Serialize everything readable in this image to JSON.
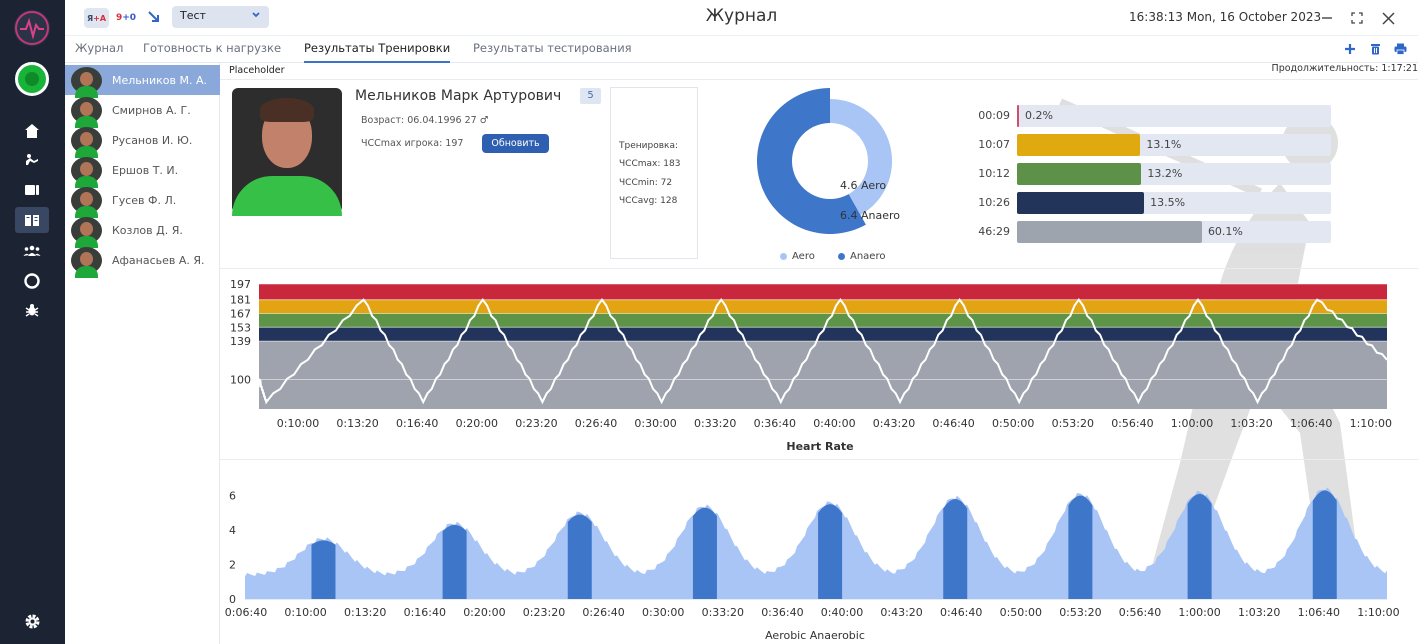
{
  "topbar": {
    "badge_ya": "Я",
    "badge_ya_suffix": "+A",
    "score_home": "9",
    "score_suffix": "+0",
    "team_select": "Тест",
    "title": "Журнал",
    "clock": "16:38:13  Mon, 16 October 2023"
  },
  "tabs": [
    "Журнал",
    "Готовность к нагрузке",
    "Результаты Тренировки",
    "Результаты тестирования"
  ],
  "active_tab": 2,
  "players": [
    "Мельников М. А.",
    "Смирнов А. Г.",
    "Русанов И. Ю.",
    "Ершов Т. И.",
    "Гусев Ф. Л.",
    "Козлов Д. Я.",
    "Афанасьев А. Я."
  ],
  "main": {
    "placeholder": "Placeholder",
    "duration": "Продолжительность: 1:17:21",
    "player_name": "Мельников Марк Артурович",
    "player_number": "5",
    "age": "Возраст: 06.04.1996 27",
    "hrmax_player": "ЧССmax игрока: 197",
    "update_button": "Обновить",
    "training_title": "Тренировка:",
    "hr_max": "ЧССmax: 183",
    "hr_min": "ЧССmin: 72",
    "hr_avg": "ЧССavg: 128"
  },
  "donut": {
    "label_aero": "4.6 Aero",
    "label_anaero": "6.4 Anaero",
    "legend": [
      "Aero",
      "Anaero"
    ],
    "values": {
      "aero": 4.6,
      "anaero": 6.4
    },
    "colors": {
      "aero": "#a9c5f5",
      "anaero": "#3e76c9"
    }
  },
  "zones": [
    {
      "time": "00:09",
      "pct": "0.2%",
      "value": 0.2,
      "color": "#d24a6d"
    },
    {
      "time": "10:07",
      "pct": "13.1%",
      "value": 13.1,
      "color": "#e0a90f"
    },
    {
      "time": "10:12",
      "pct": "13.2%",
      "value": 13.2,
      "color": "#5d9147"
    },
    {
      "time": "10:26",
      "pct": "13.5%",
      "value": 13.5,
      "color": "#23345a"
    },
    {
      "time": "46:29",
      "pct": "60.1%",
      "value": 60.1,
      "color": "#9ea4ae"
    }
  ],
  "chart_data": [
    {
      "type": "line",
      "title": "Heart Rate",
      "xlabel": "Heart Rate",
      "yticks": [
        "197",
        "181",
        "167",
        "153",
        "139",
        "100"
      ],
      "ytick_values": [
        197,
        181,
        167,
        153,
        139,
        100
      ],
      "ylim": [
        70,
        197
      ],
      "zones": [
        {
          "from": 181,
          "to": 197,
          "color": "#c8273c"
        },
        {
          "from": 167,
          "to": 181,
          "color": "#e3a413"
        },
        {
          "from": 153,
          "to": 167,
          "color": "#5e9448"
        },
        {
          "from": 139,
          "to": 153,
          "color": "#22345b"
        },
        {
          "from": 70,
          "to": 139,
          "color": "#9ea3ad"
        }
      ],
      "xticks": [
        "0:10:00",
        "0:13:20",
        "0:16:40",
        "0:20:00",
        "0:23:20",
        "0:26:40",
        "0:30:00",
        "0:33:20",
        "0:36:40",
        "0:40:00",
        "0:43:20",
        "0:46:40",
        "0:50:00",
        "0:53:20",
        "0:56:40",
        "1:00:00",
        "1:03:20",
        "1:06:40",
        "1:10:00"
      ],
      "peaks_times": [
        "0:13:20",
        "0:20:00",
        "0:26:40",
        "0:33:20",
        "0:40:00",
        "0:46:40",
        "0:53:20",
        "1:00:00",
        "1:06:40"
      ],
      "peak_value": 181,
      "trough_value": 77,
      "series": [
        {
          "name": "",
          "color": "#ffffff"
        }
      ]
    },
    {
      "type": "area",
      "xlabel": "Aerobic Anaerobic",
      "yticks": [
        "6",
        "4",
        "2",
        "0"
      ],
      "ytick_values": [
        6,
        4,
        2,
        0
      ],
      "ylim": [
        0,
        6.5
      ],
      "xticks": [
        "0:06:40",
        "0:10:00",
        "0:13:20",
        "0:16:40",
        "0:20:00",
        "0:23:20",
        "0:26:40",
        "0:30:00",
        "0:33:20",
        "0:36:40",
        "0:40:00",
        "0:43:20",
        "0:46:40",
        "0:50:00",
        "0:53:20",
        "0:56:40",
        "1:00:00",
        "1:03:20",
        "1:06:40",
        "1:10:00"
      ],
      "peak_heights": [
        3.4,
        4.3,
        4.9,
        5.3,
        5.5,
        5.8,
        6.0,
        6.1,
        6.3
      ],
      "base_level": 1.3,
      "colors": {
        "aerobic": "#a9c5f5",
        "anaerobic": "#3e76c9"
      }
    }
  ]
}
